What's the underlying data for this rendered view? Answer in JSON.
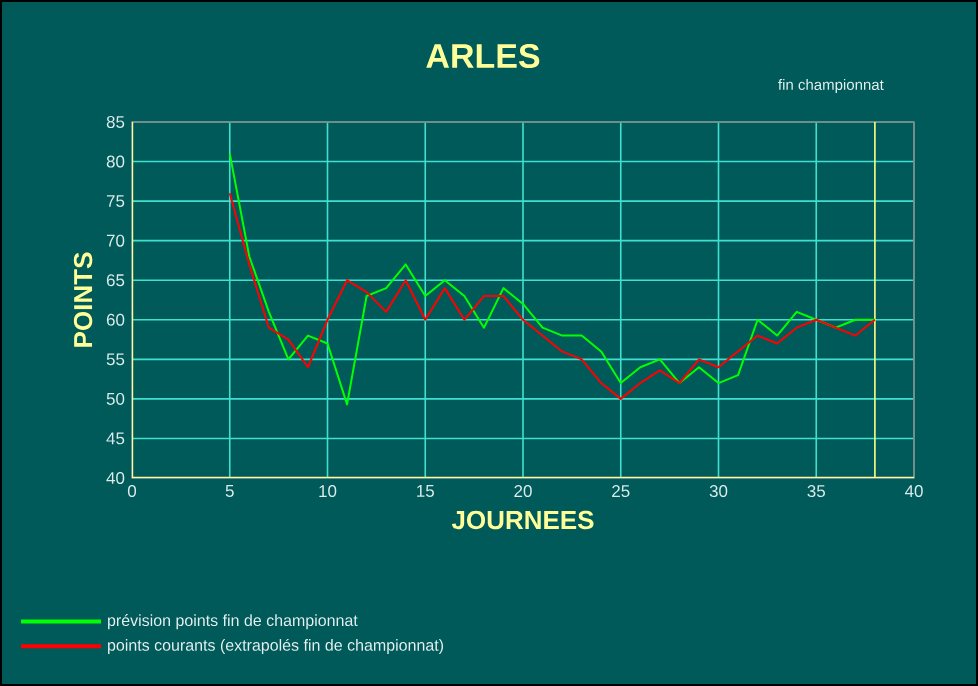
{
  "chart_data": {
    "type": "line",
    "title": "ARLES",
    "xlabel": "JOURNEES",
    "ylabel": "POINTS",
    "x": [
      5,
      6,
      7,
      8,
      9,
      10,
      11,
      12,
      13,
      14,
      15,
      16,
      17,
      18,
      19,
      20,
      21,
      22,
      23,
      24,
      25,
      26,
      27,
      28,
      29,
      30,
      31,
      32,
      33,
      34,
      35,
      36,
      37,
      38
    ],
    "series": [
      {
        "name": "prévision points fin de championnat",
        "color": "#00ff00",
        "values": [
          81,
          68,
          61,
          55,
          58,
          57,
          49.3,
          63,
          64,
          67,
          63,
          65,
          63,
          59,
          64,
          62,
          59,
          58,
          58,
          56,
          52,
          54,
          55,
          52,
          54,
          52,
          53,
          60,
          58,
          61,
          60,
          59,
          60,
          60
        ]
      },
      {
        "name": "points courants (extrapolés fin de championnat)",
        "color": "#ff0000",
        "values": [
          76,
          67,
          59,
          57.5,
          54,
          60,
          65,
          63.5,
          61,
          65,
          60,
          64,
          60,
          63,
          63,
          60,
          58,
          56,
          55,
          52,
          50,
          52,
          53.6,
          52,
          55,
          54,
          56,
          58,
          57,
          59,
          60,
          59,
          58,
          60
        ]
      }
    ],
    "xlim": [
      0,
      40
    ],
    "xticks": [
      0,
      5,
      10,
      15,
      20,
      25,
      30,
      35,
      40
    ],
    "ylim": [
      40,
      85
    ],
    "yticks": [
      40,
      45,
      50,
      55,
      60,
      65,
      70,
      75,
      80,
      85
    ],
    "grid": true,
    "legend": "bottom",
    "marker": "none",
    "line_style": "solid",
    "ref_lines": [
      {
        "axis": "x",
        "value": 38,
        "label": "fin championnat",
        "color": "#ffff80"
      }
    ]
  }
}
